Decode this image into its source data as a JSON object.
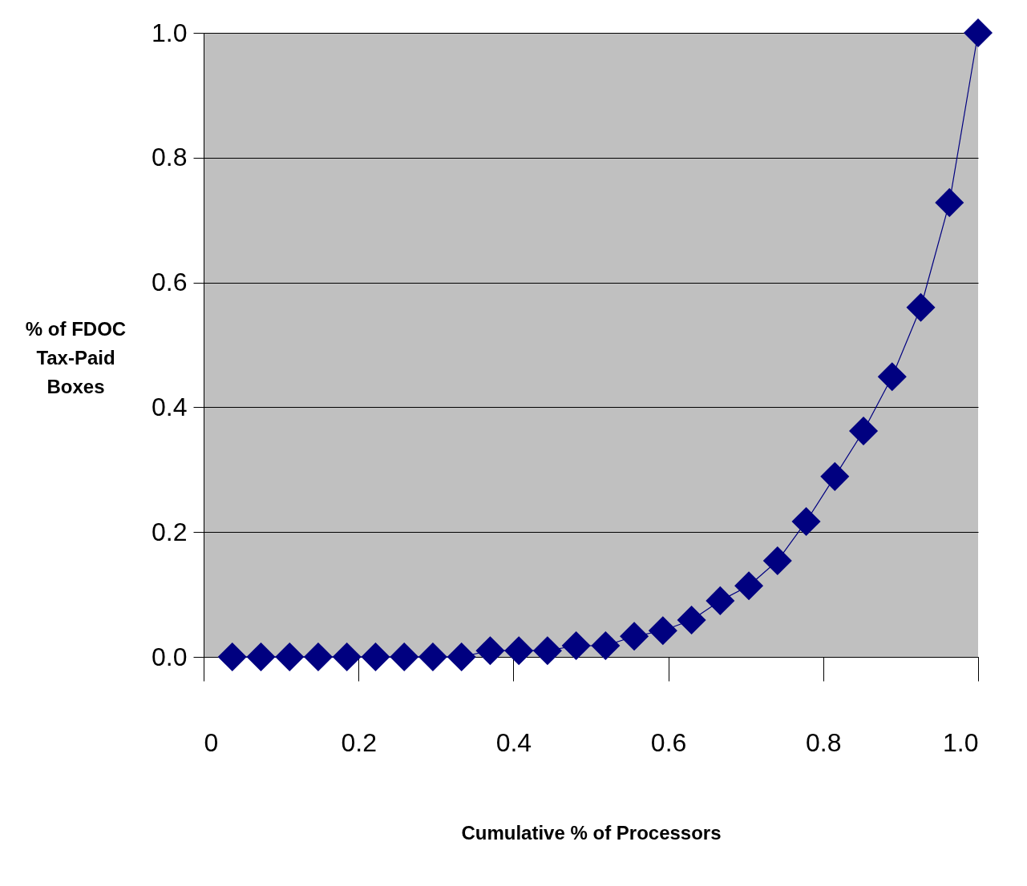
{
  "chart_data": {
    "type": "line",
    "xlabel": "Cumulative % of Processors",
    "ylabel": "% of FDOC Tax-Paid Boxes",
    "x": [
      0.037,
      0.074,
      0.111,
      0.148,
      0.185,
      0.222,
      0.259,
      0.296,
      0.333,
      0.37,
      0.407,
      0.444,
      0.481,
      0.519,
      0.556,
      0.593,
      0.63,
      0.667,
      0.704,
      0.741,
      0.778,
      0.815,
      0.852,
      0.889,
      0.926,
      0.963,
      1.0
    ],
    "series": [
      {
        "color": "#000080",
        "values": [
          0,
          0,
          0,
          0,
          0,
          0,
          0,
          0,
          0,
          0.01,
          0.01,
          0.01,
          0.018,
          0.018,
          0.033,
          0.042,
          0.059,
          0.09,
          0.114,
          0.154,
          0.217,
          0.289,
          0.362,
          0.449,
          0.56,
          0.728,
          1.0
        ]
      }
    ],
    "xlim": [
      0,
      1
    ],
    "ylim": [
      0,
      1
    ],
    "xticks": [
      {
        "value": 0,
        "label": "0"
      },
      0.2,
      0.4,
      0.6,
      0.8,
      {
        "value": 1,
        "label": "1.0"
      }
    ],
    "yticks": [
      {
        "value": 0,
        "label": "0.0"
      },
      0.2,
      0.4,
      0.6,
      0.8,
      {
        "value": 1,
        "label": "1.0"
      }
    ],
    "grid": "y",
    "marker": "diamond",
    "line_style": "solid"
  }
}
